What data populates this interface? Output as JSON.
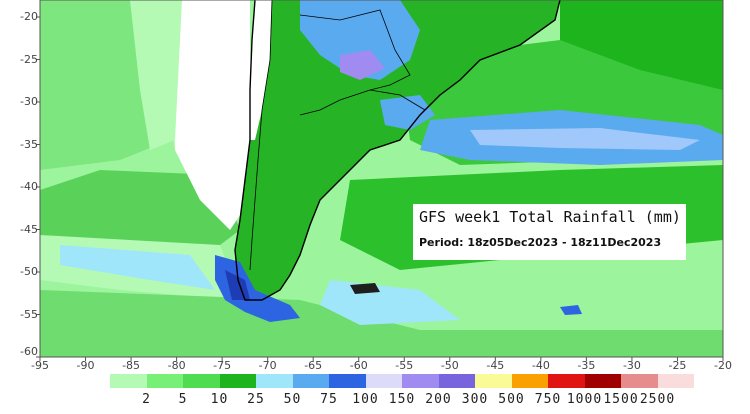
{
  "map": {
    "title": "GFS week1 Total Rainfall (mm)",
    "period": "Period: 18z05Dec2023 - 18z11Dec2023",
    "lat_ticks": [
      "-20",
      "-25",
      "-30",
      "-35",
      "-40",
      "-45",
      "-50",
      "-55",
      "-60"
    ],
    "lon_ticks": [
      "-95",
      "-90",
      "-85",
      "-80",
      "-75",
      "-70",
      "-65",
      "-60",
      "-55",
      "-50",
      "-45",
      "-40",
      "-35",
      "-30",
      "-25",
      "-20"
    ],
    "extent": {
      "lon_min": -95,
      "lon_max": -20,
      "lat_min": -60,
      "lat_max": -18
    },
    "colors": {
      "ocean_light": "#9cf59c",
      "land_green": "#26b426",
      "dry_white": "#ffffff",
      "blue": "#3c78e6"
    }
  },
  "colorbar": {
    "labels": [
      "2",
      "5",
      "10",
      "25",
      "50",
      "75",
      "100",
      "150",
      "200",
      "300",
      "500",
      "750",
      "1000",
      "1500",
      "2500"
    ],
    "colors": [
      "#b4fab4",
      "#78f078",
      "#50dc50",
      "#1eb41e",
      "#a0e6fa",
      "#5aaaf0",
      "#2d64e1",
      "#dcdcfa",
      "#a08cf0",
      "#7864dc",
      "#fafa96",
      "#faa000",
      "#e11414",
      "#a00000",
      "#e68c8c",
      "#fadcdc"
    ]
  }
}
